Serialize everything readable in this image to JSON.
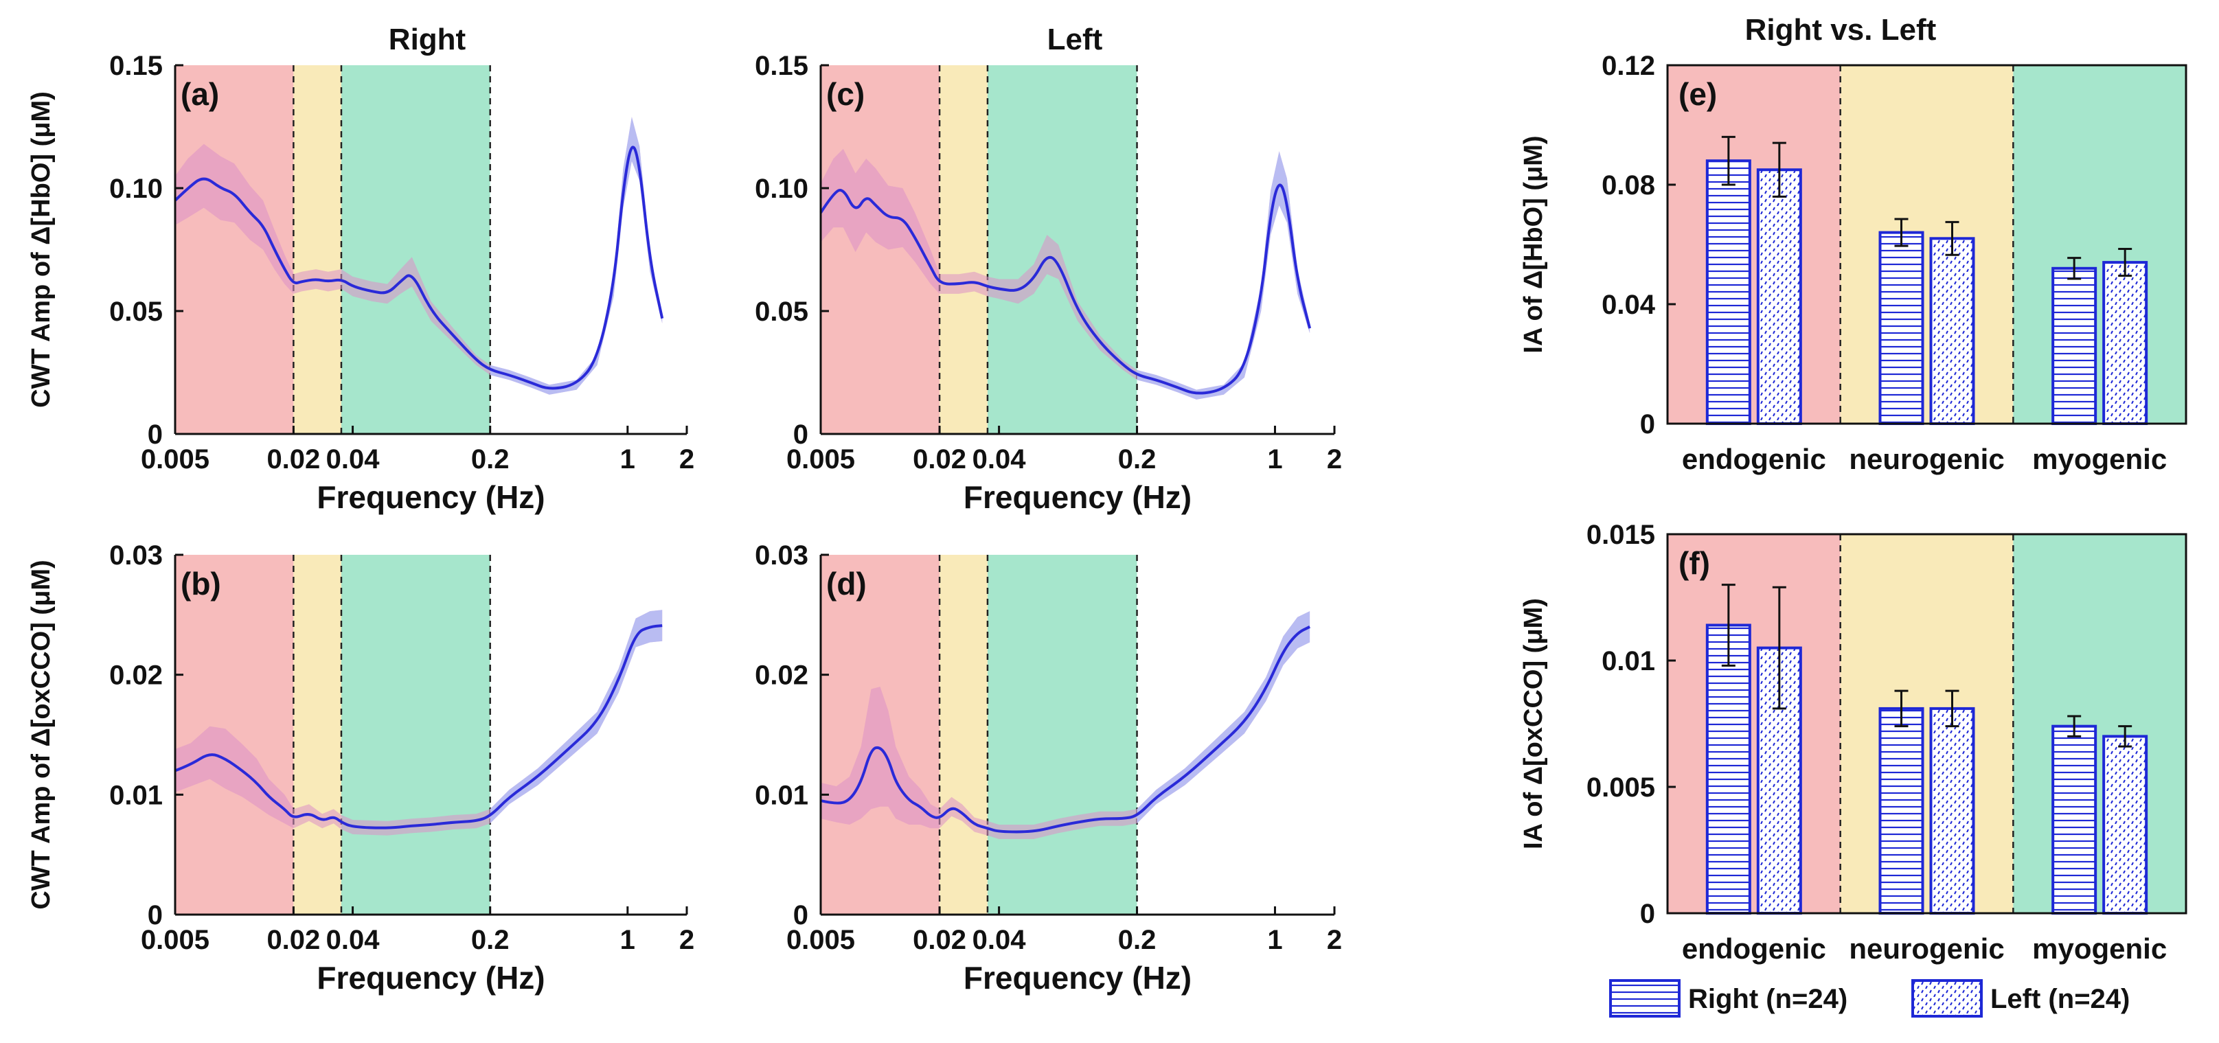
{
  "titles": {
    "right": "Right",
    "left": "Left",
    "compare": "Right vs. Left"
  },
  "colors": {
    "endogenic_band": "#F7BCBC",
    "neurogenic_band": "#F9EAB9",
    "myogenic_band": "#A6E6CC",
    "line": "#2A2AD8",
    "shade_blue": "#B9BCF2",
    "shade_pink": "#DC8FC6",
    "bar_edge": "#1E28D6"
  },
  "chart_data": [
    {
      "id": "a",
      "type": "line",
      "panel_label": "(a)",
      "column": "Right",
      "xscale": "log",
      "xlim": [
        0.005,
        2
      ],
      "xticks": [
        "0.005",
        "0.02",
        "0.04",
        "0.2",
        "1",
        "2"
      ],
      "xlabel": "Frequency (Hz)",
      "ylabel": "CWT Amp of Δ[HbO] (μM)",
      "ylim": [
        0,
        0.15
      ],
      "yticks": [
        "0",
        "0.05",
        "0.10",
        "0.15"
      ],
      "bands_hz": [
        [
          0.005,
          0.02
        ],
        [
          0.02,
          0.035
        ],
        [
          0.035,
          0.2
        ]
      ],
      "series": [
        {
          "name": "mean",
          "x": [
            0.005,
            0.0058,
            0.007,
            0.0085,
            0.01,
            0.012,
            0.014,
            0.016,
            0.018,
            0.02,
            0.022,
            0.026,
            0.03,
            0.035,
            0.04,
            0.05,
            0.06,
            0.07,
            0.08,
            0.1,
            0.13,
            0.17,
            0.2,
            0.25,
            0.32,
            0.4,
            0.55,
            0.7,
            0.85,
            0.95,
            1.05,
            1.15,
            1.3,
            1.5
          ],
          "y": [
            0.095,
            0.1,
            0.105,
            0.1,
            0.098,
            0.09,
            0.085,
            0.075,
            0.067,
            0.061,
            0.062,
            0.063,
            0.062,
            0.063,
            0.06,
            0.058,
            0.057,
            0.062,
            0.066,
            0.05,
            0.04,
            0.03,
            0.026,
            0.024,
            0.021,
            0.018,
            0.02,
            0.03,
            0.06,
            0.1,
            0.12,
            0.11,
            0.07,
            0.047
          ],
          "err": [
            0.01,
            0.012,
            0.013,
            0.013,
            0.012,
            0.011,
            0.01,
            0.008,
            0.006,
            0.004,
            0.004,
            0.004,
            0.004,
            0.004,
            0.004,
            0.004,
            0.004,
            0.005,
            0.006,
            0.004,
            0.003,
            0.002,
            0.002,
            0.002,
            0.002,
            0.002,
            0.002,
            0.002,
            0.004,
            0.008,
            0.009,
            0.007,
            0.004,
            0.002
          ]
        }
      ]
    },
    {
      "id": "b",
      "type": "line",
      "panel_label": "(b)",
      "column": "Right",
      "xscale": "log",
      "xlim": [
        0.005,
        2
      ],
      "xticks": [
        "0.005",
        "0.02",
        "0.04",
        "0.2",
        "1",
        "2"
      ],
      "xlabel": "Frequency (Hz)",
      "ylabel": "CWT Amp of Δ[oxCCO] (μM)",
      "ylim": [
        0,
        0.03
      ],
      "yticks": [
        "0",
        "0.01",
        "0.02",
        "0.03"
      ],
      "bands_hz": [
        [
          0.005,
          0.02
        ],
        [
          0.02,
          0.035
        ],
        [
          0.035,
          0.2
        ]
      ],
      "series": [
        {
          "name": "mean",
          "x": [
            0.005,
            0.006,
            0.0075,
            0.009,
            0.011,
            0.013,
            0.015,
            0.018,
            0.02,
            0.024,
            0.028,
            0.032,
            0.035,
            0.04,
            0.06,
            0.08,
            0.1,
            0.13,
            0.17,
            0.2,
            0.25,
            0.35,
            0.5,
            0.7,
            0.9,
            1.1,
            1.3,
            1.5
          ],
          "y": [
            0.012,
            0.0125,
            0.0135,
            0.013,
            0.012,
            0.011,
            0.0098,
            0.0088,
            0.008,
            0.0085,
            0.0078,
            0.0082,
            0.0077,
            0.0073,
            0.0072,
            0.0074,
            0.0075,
            0.0077,
            0.0078,
            0.0082,
            0.0098,
            0.0115,
            0.0138,
            0.016,
            0.0195,
            0.0235,
            0.024,
            0.0241
          ],
          "err": [
            0.0018,
            0.0018,
            0.0022,
            0.0025,
            0.0022,
            0.002,
            0.0015,
            0.0012,
            0.0008,
            0.0007,
            0.0006,
            0.0006,
            0.0006,
            0.0006,
            0.0006,
            0.0006,
            0.0006,
            0.0006,
            0.0006,
            0.0006,
            0.0006,
            0.0007,
            0.0008,
            0.0009,
            0.001,
            0.0012,
            0.0013,
            0.0013
          ]
        }
      ]
    },
    {
      "id": "c",
      "type": "line",
      "panel_label": "(c)",
      "column": "Left",
      "xscale": "log",
      "xlim": [
        0.005,
        2
      ],
      "xticks": [
        "0.005",
        "0.02",
        "0.04",
        "0.2",
        "1",
        "2"
      ],
      "xlabel": "Frequency (Hz)",
      "ylabel": "",
      "ylim": [
        0,
        0.15
      ],
      "yticks": [
        "0",
        "0.05",
        "0.10",
        "0.15"
      ],
      "bands_hz": [
        [
          0.005,
          0.02
        ],
        [
          0.02,
          0.035
        ],
        [
          0.035,
          0.2
        ]
      ],
      "series": [
        {
          "name": "mean",
          "x": [
            0.005,
            0.0058,
            0.0065,
            0.0075,
            0.0085,
            0.0095,
            0.011,
            0.013,
            0.015,
            0.018,
            0.02,
            0.025,
            0.03,
            0.035,
            0.04,
            0.05,
            0.06,
            0.07,
            0.08,
            0.1,
            0.13,
            0.17,
            0.2,
            0.25,
            0.32,
            0.4,
            0.55,
            0.7,
            0.85,
            0.95,
            1.05,
            1.15,
            1.3,
            1.5
          ],
          "y": [
            0.09,
            0.098,
            0.1,
            0.09,
            0.097,
            0.093,
            0.088,
            0.088,
            0.08,
            0.068,
            0.061,
            0.061,
            0.062,
            0.06,
            0.059,
            0.058,
            0.063,
            0.073,
            0.07,
            0.05,
            0.037,
            0.028,
            0.024,
            0.022,
            0.019,
            0.016,
            0.018,
            0.026,
            0.055,
            0.09,
            0.104,
            0.095,
            0.062,
            0.043
          ],
          "err": [
            0.012,
            0.014,
            0.016,
            0.016,
            0.015,
            0.015,
            0.013,
            0.012,
            0.01,
            0.007,
            0.004,
            0.004,
            0.004,
            0.004,
            0.004,
            0.005,
            0.006,
            0.008,
            0.007,
            0.004,
            0.003,
            0.002,
            0.002,
            0.002,
            0.002,
            0.002,
            0.002,
            0.003,
            0.005,
            0.009,
            0.011,
            0.009,
            0.005,
            0.002
          ]
        }
      ]
    },
    {
      "id": "d",
      "type": "line",
      "panel_label": "(d)",
      "column": "Left",
      "xscale": "log",
      "xlim": [
        0.005,
        2
      ],
      "xticks": [
        "0.005",
        "0.02",
        "0.04",
        "0.2",
        "1",
        "2"
      ],
      "xlabel": "Frequency (Hz)",
      "ylabel": "",
      "ylim": [
        0,
        0.03
      ],
      "yticks": [
        "0",
        "0.01",
        "0.02",
        "0.03"
      ],
      "bands_hz": [
        [
          0.005,
          0.02
        ],
        [
          0.02,
          0.035
        ],
        [
          0.035,
          0.2
        ]
      ],
      "series": [
        {
          "name": "mean",
          "x": [
            0.005,
            0.006,
            0.007,
            0.008,
            0.009,
            0.01,
            0.011,
            0.012,
            0.014,
            0.016,
            0.018,
            0.02,
            0.023,
            0.026,
            0.03,
            0.035,
            0.04,
            0.06,
            0.08,
            0.1,
            0.13,
            0.17,
            0.2,
            0.25,
            0.35,
            0.5,
            0.7,
            0.9,
            1.1,
            1.3,
            1.5
          ],
          "y": [
            0.0095,
            0.0092,
            0.0095,
            0.011,
            0.0138,
            0.014,
            0.013,
            0.011,
            0.0095,
            0.009,
            0.0082,
            0.008,
            0.009,
            0.0085,
            0.0075,
            0.0072,
            0.0069,
            0.0069,
            0.0074,
            0.0077,
            0.008,
            0.008,
            0.0082,
            0.0098,
            0.0115,
            0.0138,
            0.016,
            0.0188,
            0.022,
            0.0235,
            0.024
          ],
          "err": [
            0.0015,
            0.0015,
            0.002,
            0.003,
            0.005,
            0.005,
            0.004,
            0.003,
            0.002,
            0.0015,
            0.001,
            0.0008,
            0.0008,
            0.0007,
            0.0006,
            0.0006,
            0.0006,
            0.0006,
            0.0006,
            0.0006,
            0.0006,
            0.0006,
            0.0006,
            0.0006,
            0.0007,
            0.0008,
            0.0009,
            0.001,
            0.0012,
            0.0013,
            0.0013
          ]
        }
      ]
    },
    {
      "id": "e",
      "type": "bar",
      "panel_label": "(e)",
      "categories": [
        "endogenic",
        "neurogenic",
        "myogenic"
      ],
      "ylabel": "IA of Δ[HbO] (μM)",
      "ylim": [
        0,
        0.12
      ],
      "yticks": [
        "0",
        "0.04",
        "0.08",
        "0.12"
      ],
      "series": [
        {
          "name": "Right (n=24)",
          "values": [
            0.088,
            0.064,
            0.052
          ],
          "err": [
            0.008,
            0.0045,
            0.0035
          ]
        },
        {
          "name": "Left (n=24)",
          "values": [
            0.085,
            0.062,
            0.054
          ],
          "err": [
            0.009,
            0.0055,
            0.0045
          ]
        }
      ]
    },
    {
      "id": "f",
      "type": "bar",
      "panel_label": "(f)",
      "categories": [
        "endogenic",
        "neurogenic",
        "myogenic"
      ],
      "ylabel": "IA of Δ[oxCCO] (μM)",
      "ylim": [
        0,
        0.015
      ],
      "yticks": [
        "0",
        "0.005",
        "0.01",
        "0.015"
      ],
      "series": [
        {
          "name": "Right (n=24)",
          "values": [
            0.0114,
            0.0081,
            0.0074
          ],
          "err": [
            0.0016,
            0.0007,
            0.0004
          ]
        },
        {
          "name": "Left (n=24)",
          "values": [
            0.0105,
            0.0081,
            0.007
          ],
          "err": [
            0.0024,
            0.0007,
            0.0004
          ]
        }
      ]
    }
  ],
  "legend": {
    "right": "Right (n=24)",
    "left": "Left (n=24)"
  }
}
